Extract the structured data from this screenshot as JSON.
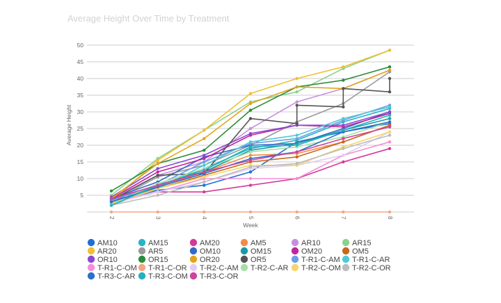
{
  "chart_data": {
    "type": "line",
    "title": "Average Height Over Time by Treatment",
    "xlabel": "Week",
    "ylabel": "Average Height",
    "x": [
      2,
      3,
      4,
      5,
      6,
      7,
      8
    ],
    "xlim": [
      2,
      8
    ],
    "ylim": [
      0,
      50
    ],
    "yticks": [
      5,
      10,
      15,
      20,
      25,
      30,
      35,
      40,
      45,
      50
    ],
    "grid": true,
    "legend_position": "bottom",
    "series": [
      {
        "name": "AM10",
        "color": "#1f6fd6",
        "values": [
          3.5,
          6.5,
          8,
          12,
          21,
          24,
          26.5
        ]
      },
      {
        "name": "AM15",
        "color": "#26b4c7",
        "values": [
          2,
          7.5,
          13,
          19,
          21.5,
          27,
          31
        ]
      },
      {
        "name": "AM20",
        "color": "#d6379b",
        "values": [
          3.5,
          6,
          6,
          8,
          10,
          15,
          19
        ]
      },
      {
        "name": "AM5",
        "color": "#f28b48",
        "values": [
          4.5,
          7.5,
          12,
          17,
          17.5,
          21,
          26
        ]
      },
      {
        "name": "AR10",
        "color": "#c58fe0",
        "values": [
          4,
          11,
          15,
          25,
          33,
          37,
          42.5
        ]
      },
      {
        "name": "AR15",
        "color": "#8cd18c",
        "values": [
          5,
          16,
          24.5,
          33,
          36,
          43,
          48.5
        ]
      },
      {
        "name": "AR20",
        "color": "#f0c032",
        "values": [
          3,
          15.5,
          24.5,
          35.5,
          40,
          43.5,
          48.5
        ]
      },
      {
        "name": "AR5",
        "color": "#9a9a9a",
        "values": [
          3,
          10.5,
          14,
          20,
          27,
          32.5,
          42
        ]
      },
      {
        "name": "OM10",
        "color": "#3567c9",
        "values": [
          4,
          9,
          16.5,
          20,
          20.5,
          25,
          30
        ]
      },
      {
        "name": "OM15",
        "color": "#1b9aa0",
        "values": [
          2.5,
          8,
          12,
          18.5,
          20.5,
          24.5,
          28
        ]
      },
      {
        "name": "OM20",
        "color": "#c0259a",
        "values": [
          4,
          12,
          16,
          23,
          26,
          25.5,
          29.5
        ]
      },
      {
        "name": "OM5",
        "color": "#c6681e",
        "values": [
          4,
          7,
          11,
          15,
          16.5,
          21,
          26
        ]
      },
      {
        "name": "OR10",
        "color": "#8b48d1",
        "values": [
          4.5,
          13,
          17,
          23.5,
          26,
          26,
          30
        ]
      },
      {
        "name": "OR15",
        "color": "#2c8c3c",
        "values": [
          6.3,
          14.5,
          18.5,
          30.5,
          37.5,
          39.5,
          43.5
        ]
      },
      {
        "name": "OR20",
        "color": "#e3a31a",
        "values": [
          4,
          14.5,
          22,
          32.5,
          37.5,
          37,
          42.5
        ]
      },
      {
        "name": "OR5",
        "color": "#555555",
        "x": [
          2,
          3,
          4,
          5,
          6,
          6,
          7,
          7,
          8,
          8
        ],
        "values": [
          3.5,
          11,
          11.5,
          28,
          26.5,
          32,
          31.5,
          37,
          36,
          40
        ]
      },
      {
        "name": "T-R1-C-AM",
        "color": "#6e9ce8",
        "values": [
          3.5,
          8,
          15,
          20.5,
          22,
          27.5,
          32
        ]
      },
      {
        "name": "T-R1-C-AR",
        "color": "#4fc9da",
        "values": [
          2,
          7,
          14,
          21,
          23,
          28,
          31.5
        ]
      },
      {
        "name": "T-R1-C-OM",
        "color": "#f38fd6",
        "values": [
          3,
          6,
          10,
          10,
          10,
          17,
          21
        ]
      },
      {
        "name": "T-R1-C-OR",
        "color": "#f5a582",
        "values": [
          0,
          0,
          0,
          0,
          0,
          0,
          0
        ]
      },
      {
        "name": "T-R2-C-AM",
        "color": "#e3ccf2",
        "values": [
          2.5,
          6,
          9,
          13,
          14,
          17,
          24
        ]
      },
      {
        "name": "T-R2-C-AR",
        "color": "#a6e0a6",
        "values": [
          2.5,
          8.5,
          13,
          18,
          19.5,
          22.5,
          27
        ]
      },
      {
        "name": "T-R2-C-OM",
        "color": "#f4d76a",
        "values": [
          2.5,
          7,
          10.5,
          14,
          14,
          19.5,
          24
        ]
      },
      {
        "name": "T-R2-C-OR",
        "color": "#bcbcbc",
        "values": [
          2,
          5,
          9,
          13.5,
          14.5,
          19,
          23
        ]
      },
      {
        "name": "T-R3-C-AR",
        "color": "#2b71c6",
        "values": [
          3,
          7.5,
          11.5,
          16,
          18,
          24,
          27
        ]
      },
      {
        "name": "T-R3-C-OM",
        "color": "#22b1c2",
        "values": [
          2,
          8,
          12.5,
          19.5,
          20,
          24.5,
          29
        ]
      },
      {
        "name": "T-R3-C-OR",
        "color": "#d1439b",
        "values": [
          4,
          8,
          12,
          15.5,
          18,
          22,
          25.5
        ]
      }
    ]
  }
}
